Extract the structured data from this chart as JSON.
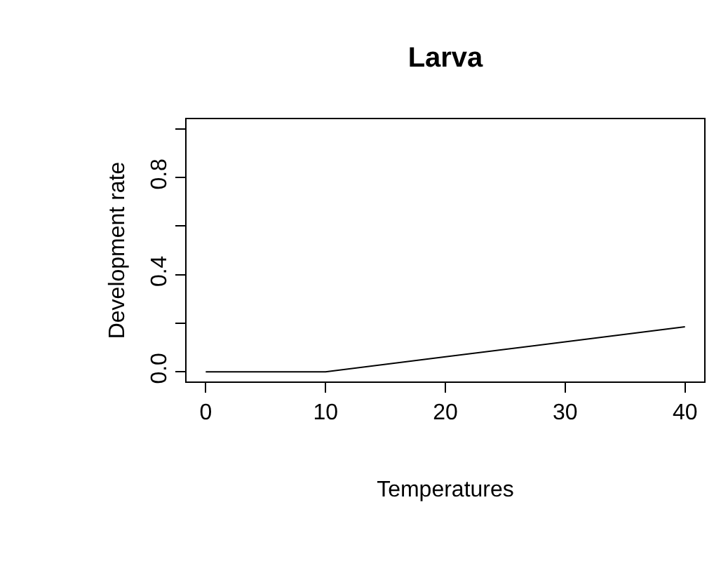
{
  "chart_data": {
    "type": "line",
    "title": "Larva",
    "xlabel": "Temperatures",
    "ylabel": "Development rate",
    "x": [
      0,
      10,
      40
    ],
    "series": [
      {
        "color": "#000000",
        "values": [
          0,
          0,
          0.185
        ]
      }
    ],
    "xlim": [
      -1.6,
      41.6
    ],
    "xticks": [
      0,
      10,
      20,
      30,
      40
    ],
    "ylim": [
      -0.04,
      1.04
    ],
    "yticks": [
      {
        "value": 0,
        "label": "0.0"
      },
      {
        "value": 0.2,
        "label": null
      },
      {
        "value": 0.4,
        "label": "0.4"
      },
      {
        "value": 0.6,
        "label": null
      },
      {
        "value": 0.8,
        "label": "0.8"
      },
      {
        "value": 1.0,
        "label": null
      }
    ],
    "marker": "none",
    "line_style": "solid"
  }
}
